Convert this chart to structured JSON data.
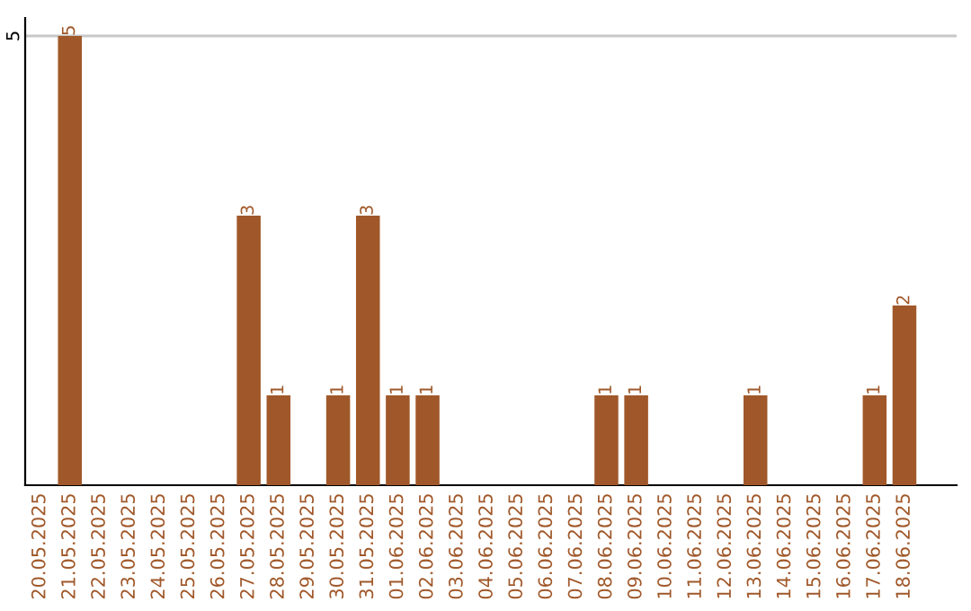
{
  "chart_data": {
    "type": "bar",
    "categories": [
      "20.05.2025",
      "21.05.2025",
      "22.05.2025",
      "23.05.2025",
      "24.05.2025",
      "25.05.2025",
      "26.05.2025",
      "27.05.2025",
      "28.05.2025",
      "29.05.2025",
      "30.05.2025",
      "31.05.2025",
      "01.06.2025",
      "02.06.2025",
      "03.06.2025",
      "04.06.2025",
      "05.06.2025",
      "06.06.2025",
      "07.06.2025",
      "08.06.2025",
      "09.06.2025",
      "10.06.2025",
      "11.06.2025",
      "12.06.2025",
      "13.06.2025",
      "14.06.2025",
      "15.06.2025",
      "16.06.2025",
      "17.06.2025",
      "18.06.2025"
    ],
    "values": [
      0,
      5,
      0,
      0,
      0,
      0,
      0,
      3,
      1,
      0,
      1,
      3,
      1,
      1,
      0,
      0,
      0,
      0,
      0,
      1,
      1,
      0,
      0,
      0,
      1,
      0,
      0,
      0,
      1,
      2
    ],
    "value_labels": [
      null,
      "5",
      null,
      null,
      null,
      null,
      null,
      "3",
      "1",
      null,
      "1",
      "3",
      "1",
      "1",
      null,
      null,
      null,
      null,
      null,
      "1",
      "1",
      null,
      null,
      null,
      "1",
      null,
      null,
      null,
      "1",
      "2"
    ],
    "color": "#a0582a",
    "ylim": [
      0,
      5.2
    ],
    "yticks": [
      5
    ],
    "grid": "y"
  }
}
